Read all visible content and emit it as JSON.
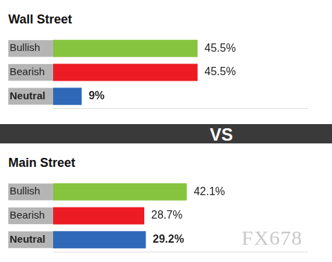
{
  "chart_data": [
    {
      "type": "bar",
      "title": "Wall Street",
      "orientation": "horizontal",
      "categories": [
        "Bullish",
        "Bearish",
        "Neutral"
      ],
      "values": [
        45.5,
        45.5,
        9
      ],
      "value_labels": [
        "45.5%",
        "45.5%",
        "9%"
      ],
      "colors": [
        "#86c440",
        "#ed1c24",
        "#3068b8"
      ],
      "xlim": [
        0,
        80
      ],
      "grid": false,
      "data_labels": true,
      "tick_labels": "y"
    },
    {
      "type": "bar",
      "title": "Main Street",
      "orientation": "horizontal",
      "categories": [
        "Bullish",
        "Bearish",
        "Neutral"
      ],
      "values": [
        42.1,
        28.7,
        29.2
      ],
      "value_labels": [
        "42.1%",
        "28.7%",
        "29.2%"
      ],
      "colors": [
        "#86c440",
        "#ed1c24",
        "#3068b8"
      ],
      "xlim": [
        0,
        80
      ],
      "grid": false,
      "data_labels": true,
      "tick_labels": "y"
    }
  ],
  "separator": "VS",
  "watermark": "FX678"
}
